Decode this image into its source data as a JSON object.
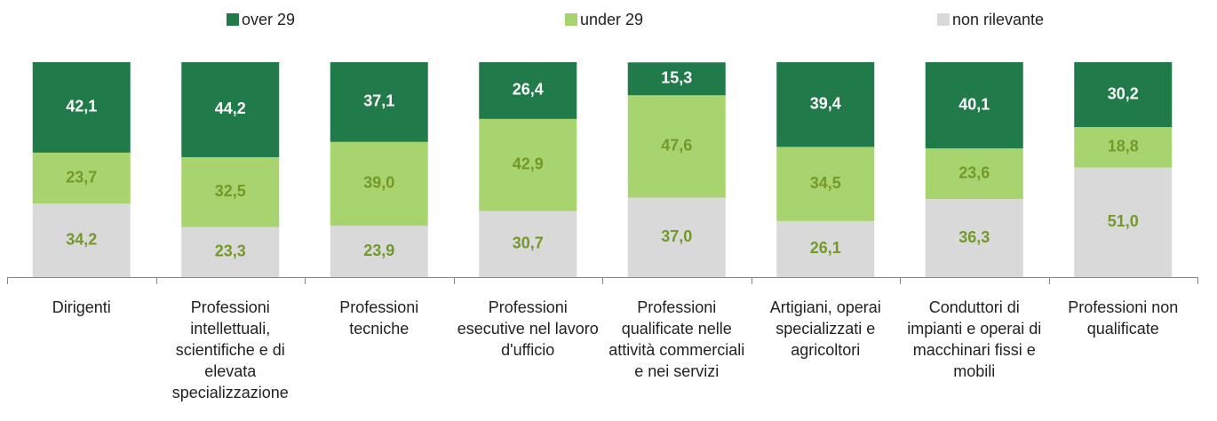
{
  "chart_data": {
    "type": "stacked_bar",
    "categories": [
      "Dirigenti",
      "Professioni intellettuali, scientifiche e di elevata specializzazione",
      "Professioni tecniche",
      "Professioni esecutive nel lavoro d'ufficio",
      "Professioni qualificate nelle attività commerciali e nei servizi",
      "Artigiani, operai specializzati e agricoltori",
      "Conduttori di impianti e operai di macchinari fissi e mobili",
      "Professioni non qualificate"
    ],
    "series": [
      {
        "name": "over 29",
        "color": "#217a4a",
        "values": [
          42.1,
          44.2,
          37.1,
          26.4,
          15.3,
          39.4,
          40.1,
          30.2
        ],
        "value_labels": [
          "42,1",
          "44,2",
          "37,1",
          "26,4",
          "15,3",
          "39,4",
          "40,1",
          "30,2"
        ]
      },
      {
        "name": "under 29",
        "color": "#a8d46f",
        "values": [
          23.7,
          32.5,
          39.0,
          42.9,
          47.6,
          34.5,
          23.6,
          18.8
        ],
        "value_labels": [
          "23,7",
          "32,5",
          "39,0",
          "42,9",
          "47,6",
          "34,5",
          "23,6",
          "18,8"
        ]
      },
      {
        "name": "non rilevante",
        "color": "#d9d9d9",
        "values": [
          34.2,
          23.3,
          23.9,
          30.7,
          37.0,
          26.1,
          36.3,
          51.0
        ],
        "value_labels": [
          "34,2",
          "23,3",
          "23,9",
          "30,7",
          "37,0",
          "26,1",
          "36,3",
          "51,0"
        ]
      }
    ],
    "ylim": [
      0,
      100
    ],
    "legend": "top"
  }
}
